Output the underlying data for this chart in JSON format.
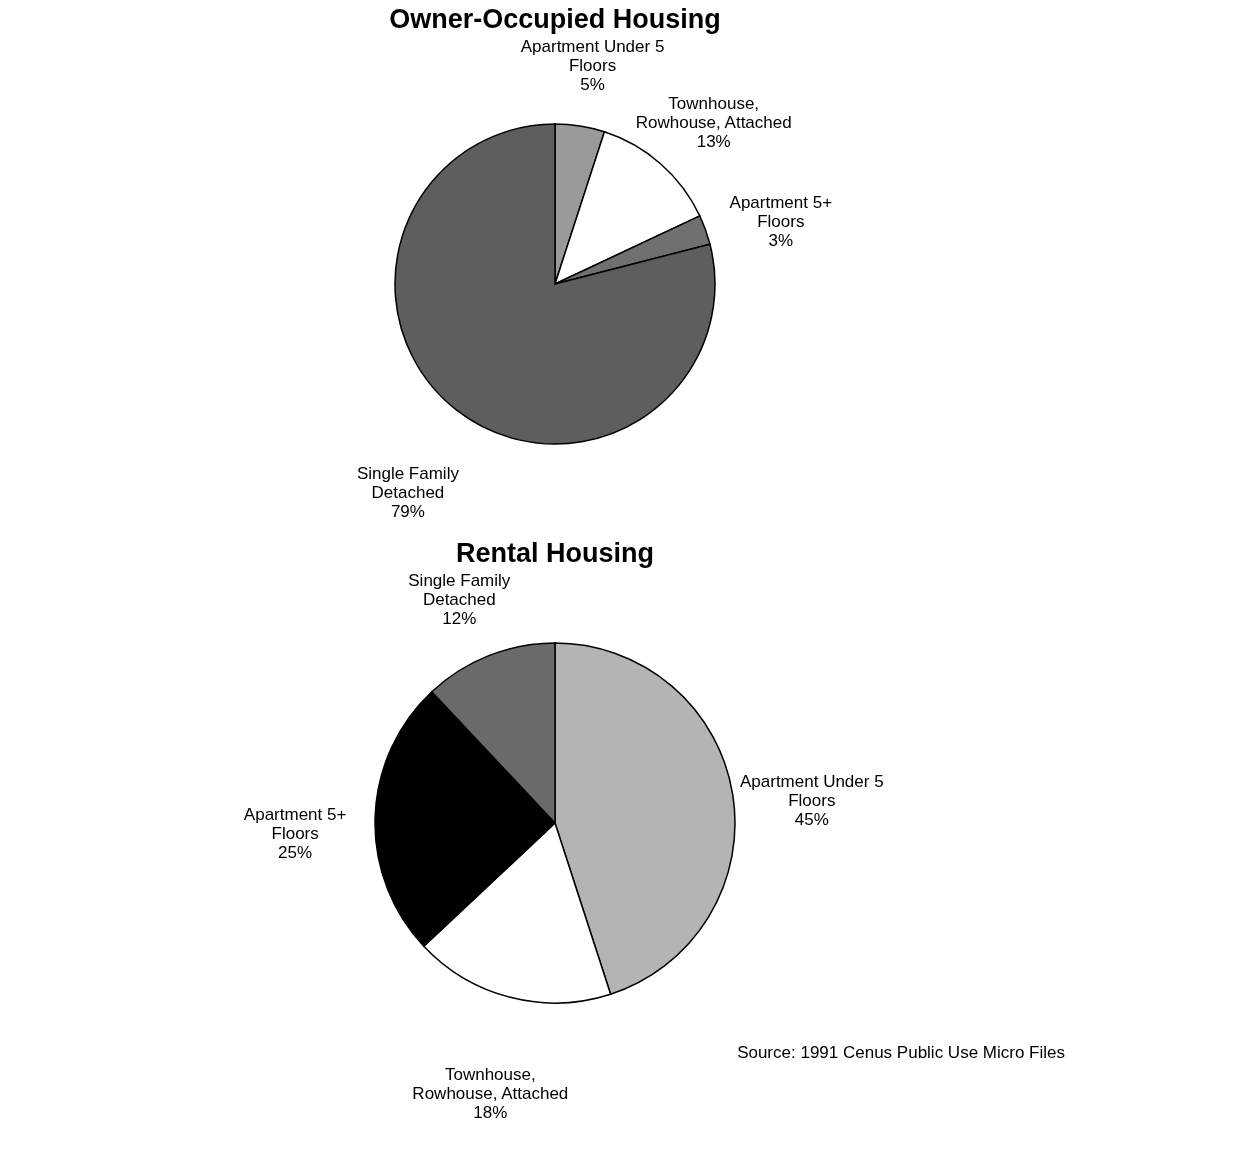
{
  "chart_data": [
    {
      "type": "pie",
      "title": "Owner-Occupied Housing",
      "categories": [
        "Apartment Under 5 Floors",
        "Townhouse, Rowhouse, Attached",
        "Apartment 5+ Floors",
        "Single Family Detached"
      ],
      "values": [
        5,
        13,
        3,
        79
      ],
      "colors": [
        "#9a9a9a",
        "#ffffff",
        "#707070",
        "#5e5e5e"
      ],
      "value_labels": [
        "5%",
        "13%",
        "3%",
        "79%"
      ]
    },
    {
      "type": "pie",
      "title": "Rental Housing",
      "categories": [
        "Apartment Under 5 Floors",
        "Townhouse, Rowhouse, Attached",
        "Apartment 5+ Floors",
        "Single Family Detached"
      ],
      "values": [
        45,
        18,
        25,
        12
      ],
      "colors": [
        "#b4b4b4",
        "#ffffff",
        "#000000",
        "#6a6a6a"
      ],
      "value_labels": [
        "45%",
        "18%",
        "25%",
        "12%"
      ],
      "annotations": [
        "Source: 1991 Cenus Public Use Micro Files"
      ]
    }
  ]
}
